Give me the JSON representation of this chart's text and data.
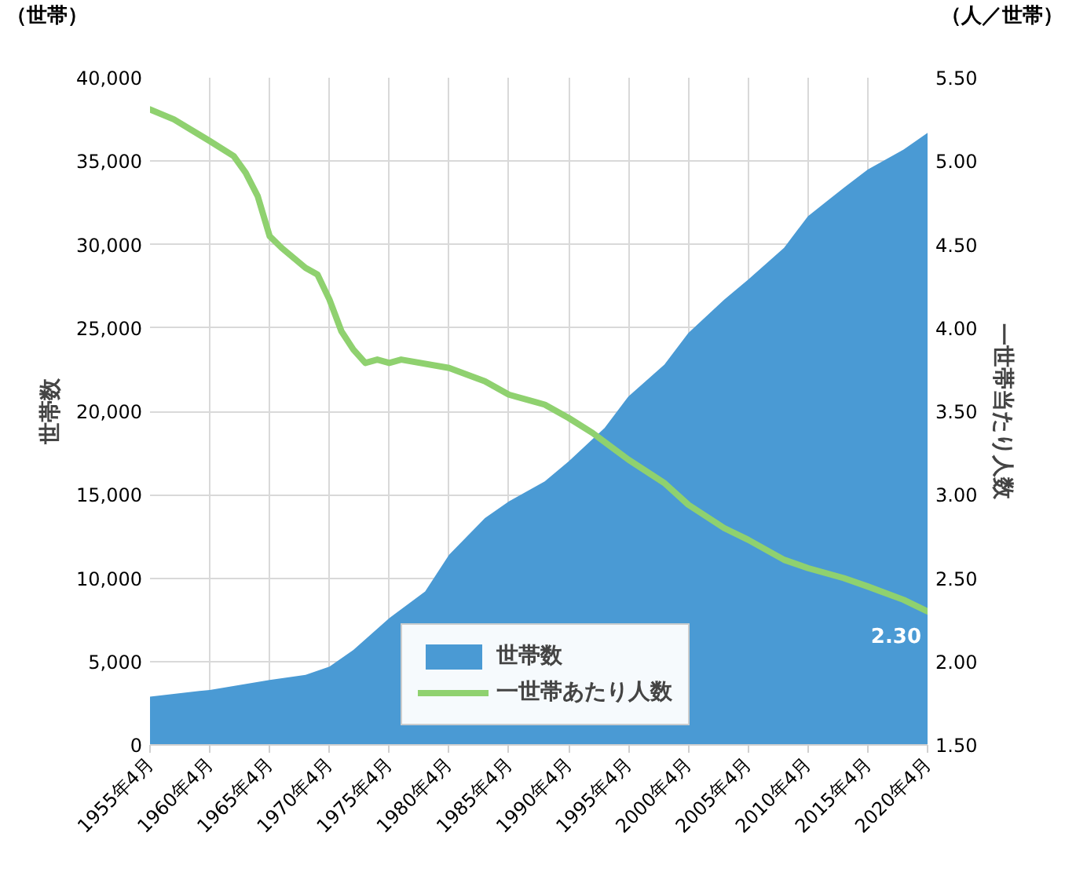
{
  "chart_data": {
    "type": "area",
    "ylabel": "世帯数",
    "y2label": "一世帯当たり人数",
    "annotations": [
      "（世帯）",
      "（人／世帯）"
    ],
    "x": [
      "1955-04",
      "1960-04",
      "1965-04",
      "1968-04",
      "1970-04",
      "1972-04",
      "1975-04",
      "1978-04",
      "1980-04",
      "1983-04",
      "1985-04",
      "1988-04",
      "1990-04",
      "1993-04",
      "1995-04",
      "1998-04",
      "2000-04",
      "2003-04",
      "2005-04",
      "2008-04",
      "2010-04",
      "2013-04",
      "2015-04",
      "2018-04",
      "2020-04"
    ],
    "series": [
      {
        "name": "世帯数",
        "color": "#4a9ad4",
        "values": [
          2900,
          3300,
          3900,
          4200,
          4700,
          5700,
          7600,
          9200,
          11400,
          13600,
          14600,
          15800,
          17000,
          19000,
          20900,
          22800,
          24700,
          26700,
          27900,
          29800,
          31700,
          33400,
          34500,
          35700,
          36700
        ]
      },
      {
        "name": "一世帯あたり人数",
        "type": "line",
        "axis": "y2",
        "color": "#8fd16f",
        "x": [
          "1955-04",
          "1957-04",
          "1960-04",
          "1962-04",
          "1963-04",
          "1964-04",
          "1965-04",
          "1966-04",
          "1968-04",
          "1969-04",
          "1970-04",
          "1971-04",
          "1972-04",
          "1973-04",
          "1974-04",
          "1975-04",
          "1976-04",
          "1980-04",
          "1983-04",
          "1985-04",
          "1988-04",
          "1990-04",
          "1992-04",
          "1995-04",
          "1998-04",
          "2000-04",
          "2003-04",
          "2005-04",
          "2008-04",
          "2010-04",
          "2013-04",
          "2015-04",
          "2018-04",
          "2020-04"
        ],
        "values": [
          5.31,
          5.25,
          5.12,
          5.03,
          4.93,
          4.79,
          4.55,
          4.48,
          4.36,
          4.32,
          4.17,
          3.98,
          3.87,
          3.79,
          3.81,
          3.79,
          3.81,
          3.76,
          3.68,
          3.6,
          3.54,
          3.46,
          3.37,
          3.21,
          3.07,
          2.94,
          2.8,
          2.73,
          2.61,
          2.56,
          2.5,
          2.45,
          2.37,
          2.3
        ],
        "value_labels": [
          null,
          null,
          null,
          null,
          null,
          null,
          null,
          null,
          null,
          null,
          null,
          null,
          null,
          null,
          null,
          null,
          null,
          null,
          null,
          null,
          null,
          null,
          null,
          null,
          null,
          null,
          null,
          null,
          null,
          null,
          null,
          null,
          null,
          "2.30"
        ]
      }
    ],
    "xlim": [
      "1955-04",
      "2020-04"
    ],
    "xticks": [
      {
        "value": "1955-04",
        "label": "1955年4月"
      },
      {
        "value": "1960-04",
        "label": "1960年4月"
      },
      {
        "value": "1965-04",
        "label": "1965年4月"
      },
      {
        "value": "1970-04",
        "label": "1970年4月"
      },
      {
        "value": "1975-04",
        "label": "1975年4月"
      },
      {
        "value": "1980-04",
        "label": "1980年4月"
      },
      {
        "value": "1985-04",
        "label": "1985年4月"
      },
      {
        "value": "1990-04",
        "label": "1990年4月"
      },
      {
        "value": "1995-04",
        "label": "1995年4月"
      },
      {
        "value": "2000-04",
        "label": "2000年4月"
      },
      {
        "value": "2005-04",
        "label": "2005年4月"
      },
      {
        "value": "2010-04",
        "label": "2010年4月"
      },
      {
        "value": "2015-04",
        "label": "2015年4月"
      },
      {
        "value": "2020-04",
        "label": "2020年4月"
      }
    ],
    "ylim": [
      0,
      40000
    ],
    "yticks": [
      0,
      {
        "value": 5000,
        "label": "5,000"
      },
      {
        "value": 10000,
        "label": "10,000"
      },
      {
        "value": 15000,
        "label": "15,000"
      },
      {
        "value": 20000,
        "label": "20,000"
      },
      {
        "value": 25000,
        "label": "25,000"
      },
      {
        "value": 30000,
        "label": "30,000"
      },
      {
        "value": 35000,
        "label": "35,000"
      },
      {
        "value": 40000,
        "label": "40,000"
      }
    ],
    "y2lim": [
      1.5,
      5.5
    ],
    "y2ticks": [
      {
        "value": 1.5,
        "label": "1.50"
      },
      {
        "value": 2.0,
        "label": "2.00"
      },
      {
        "value": 2.5,
        "label": "2.50"
      },
      {
        "value": 3.0,
        "label": "3.00"
      },
      {
        "value": 3.5,
        "label": "3.50"
      },
      {
        "value": 4.0,
        "label": "4.00"
      },
      {
        "value": 4.5,
        "label": "4.50"
      },
      {
        "value": 5.0,
        "label": "5.00"
      },
      {
        "value": 5.5,
        "label": "5.50"
      }
    ],
    "grid": true,
    "legend": "bottom right"
  }
}
